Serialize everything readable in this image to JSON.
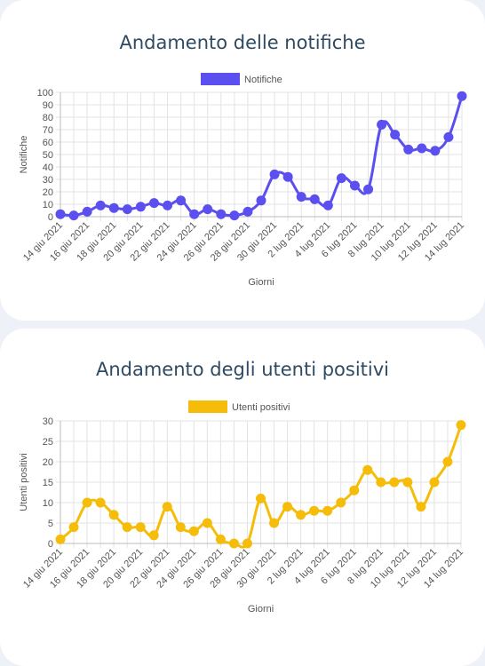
{
  "charts": [
    {
      "title": "Andamento delle notifiche",
      "chart_data": {
        "type": "line",
        "title": "Andamento delle notifiche",
        "xlabel": "Giorni",
        "ylabel": "Notifiche",
        "ylim": [
          0,
          100
        ],
        "y_step": 10,
        "legend_position": "top",
        "grid": true,
        "x": [
          "14 giu 2021",
          "15 giu 2021",
          "16 giu 2021",
          "17 giu 2021",
          "18 giu 2021",
          "19 giu 2021",
          "20 giu 2021",
          "21 giu 2021",
          "22 giu 2021",
          "23 giu 2021",
          "24 giu 2021",
          "25 giu 2021",
          "26 giu 2021",
          "27 giu 2021",
          "28 giu 2021",
          "29 giu 2021",
          "30 giu 2021",
          "1 lug 2021",
          "2 lug 2021",
          "3 lug 2021",
          "4 lug 2021",
          "5 lug 2021",
          "6 lug 2021",
          "7 lug 2021",
          "8 lug 2021",
          "9 lug 2021",
          "10 lug 2021",
          "11 lug 2021",
          "12 lug 2021",
          "13 lug 2021",
          "14 lug 2021"
        ],
        "tick_labels": [
          "14 giu 2021",
          "16 giu 2021",
          "18 giu 2021",
          "20 giu 2021",
          "22 giu 2021",
          "24 giu 2021",
          "26 giu 2021",
          "28 giu 2021",
          "30 giu 2021",
          "2 lug 2021",
          "4 lug 2021",
          "6 lug 2021",
          "8 lug 2021",
          "10 lug 2021",
          "12 lug 2021",
          "14 lug 2021"
        ],
        "series": [
          {
            "name": "Notifiche",
            "color": "#5b4fef",
            "values": [
              2,
              1,
              4,
              9,
              7,
              6,
              8,
              11,
              9,
              13,
              2,
              6,
              2,
              1,
              4,
              13,
              34,
              32,
              16,
              14,
              9,
              31,
              25,
              22,
              74,
              66,
              54,
              55,
              53,
              64,
              97
            ]
          }
        ]
      }
    },
    {
      "title": "Andamento degli utenti positivi",
      "chart_data": {
        "type": "line",
        "title": "Andamento degli utenti positivi",
        "xlabel": "Giorni",
        "ylabel": "Utenti positivi",
        "ylim": [
          0,
          30
        ],
        "y_step": 5,
        "legend_position": "top",
        "grid": true,
        "x": [
          "14 giu 2021",
          "15 giu 2021",
          "16 giu 2021",
          "17 giu 2021",
          "18 giu 2021",
          "19 giu 2021",
          "20 giu 2021",
          "21 giu 2021",
          "22 giu 2021",
          "23 giu 2021",
          "24 giu 2021",
          "25 giu 2021",
          "26 giu 2021",
          "27 giu 2021",
          "28 giu 2021",
          "29 giu 2021",
          "30 giu 2021",
          "1 lug 2021",
          "2 lug 2021",
          "3 lug 2021",
          "4 lug 2021",
          "5 lug 2021",
          "6 lug 2021",
          "7 lug 2021",
          "8 lug 2021",
          "9 lug 2021",
          "10 lug 2021",
          "11 lug 2021",
          "12 lug 2021",
          "13 lug 2021",
          "14 lug 2021"
        ],
        "tick_labels": [
          "14 giu 2021",
          "16 giu 2021",
          "18 giu 2021",
          "20 giu 2021",
          "22 giu 2021",
          "24 giu 2021",
          "26 giu 2021",
          "28 giu 2021",
          "30 giu 2021",
          "2 lug 2021",
          "4 lug 2021",
          "6 lug 2021",
          "8 lug 2021",
          "10 lug 2021",
          "12 lug 2021",
          "14 lug 2021"
        ],
        "series": [
          {
            "name": "Utenti positivi",
            "color": "#f5bd0a",
            "values": [
              1,
              4,
              10,
              10,
              7,
              4,
              4,
              2,
              9,
              4,
              3,
              5,
              1,
              0,
              0,
              11,
              5,
              9,
              7,
              8,
              8,
              10,
              13,
              18,
              15,
              15,
              15,
              9,
              15,
              20,
              29
            ]
          }
        ]
      }
    }
  ]
}
